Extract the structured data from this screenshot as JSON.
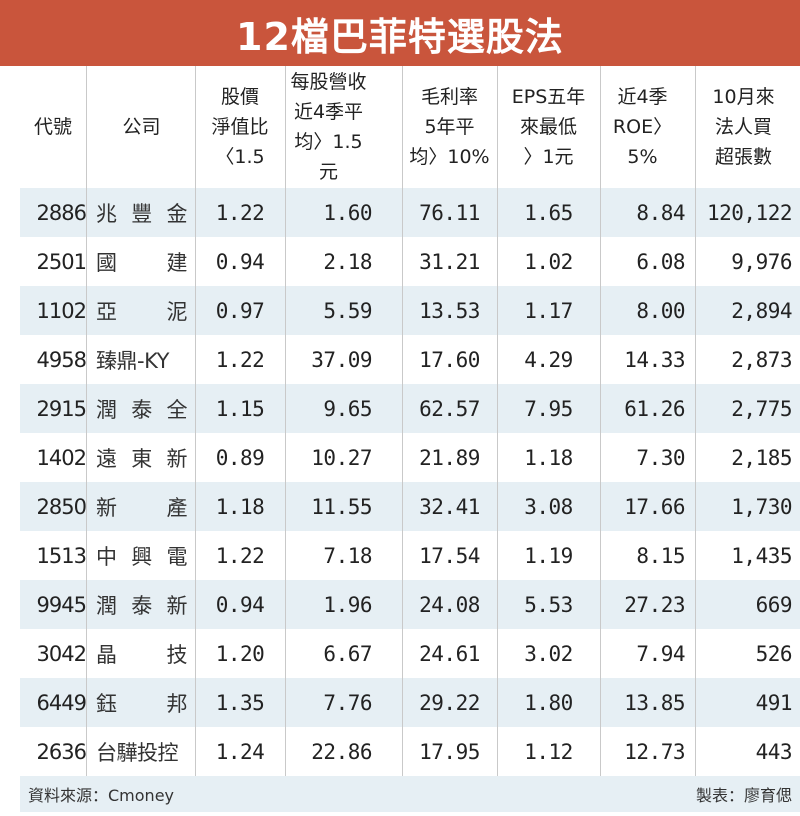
{
  "title": "12檔巴菲特選股法",
  "columns": [
    {
      "key": "code",
      "label": "代號"
    },
    {
      "key": "name",
      "label": "公司"
    },
    {
      "key": "pb",
      "label": "股價\n淨值比\n〈1.5"
    },
    {
      "key": "rev",
      "label": "每股營收\n近4季平\n均〉1.5元"
    },
    {
      "key": "gm",
      "label": "毛利率\n5年平\n均〉10%"
    },
    {
      "key": "eps",
      "label": "EPS五年\n來最低\n〉1元"
    },
    {
      "key": "roe",
      "label": "近4季\nROE〉5%"
    },
    {
      "key": "buy",
      "label": "10月來\n法人買\n超張數"
    }
  ],
  "rows": [
    {
      "code": "2886",
      "name": [
        "兆",
        "豐",
        "金"
      ],
      "pb": "1.22",
      "rev": "1.60",
      "gm": "76.11",
      "eps": "1.65",
      "roe": "8.84",
      "buy": "120,122"
    },
    {
      "code": "2501",
      "name": [
        "國",
        "建"
      ],
      "pb": "0.94",
      "rev": "2.18",
      "gm": "31.21",
      "eps": "1.02",
      "roe": "6.08",
      "buy": "9,976"
    },
    {
      "code": "1102",
      "name": [
        "亞",
        "泥"
      ],
      "pb": "0.97",
      "rev": "5.59",
      "gm": "13.53",
      "eps": "1.17",
      "roe": "8.00",
      "buy": "2,894"
    },
    {
      "code": "4958",
      "name": [
        "臻鼎-KY"
      ],
      "pb": "1.22",
      "rev": "37.09",
      "gm": "17.60",
      "eps": "4.29",
      "roe": "14.33",
      "buy": "2,873"
    },
    {
      "code": "2915",
      "name": [
        "潤",
        "泰",
        "全"
      ],
      "pb": "1.15",
      "rev": "9.65",
      "gm": "62.57",
      "eps": "7.95",
      "roe": "61.26",
      "buy": "2,775"
    },
    {
      "code": "1402",
      "name": [
        "遠",
        "東",
        "新"
      ],
      "pb": "0.89",
      "rev": "10.27",
      "gm": "21.89",
      "eps": "1.18",
      "roe": "7.30",
      "buy": "2,185"
    },
    {
      "code": "2850",
      "name": [
        "新",
        "產"
      ],
      "pb": "1.18",
      "rev": "11.55",
      "gm": "32.41",
      "eps": "3.08",
      "roe": "17.66",
      "buy": "1,730"
    },
    {
      "code": "1513",
      "name": [
        "中",
        "興",
        "電"
      ],
      "pb": "1.22",
      "rev": "7.18",
      "gm": "17.54",
      "eps": "1.19",
      "roe": "8.15",
      "buy": "1,435"
    },
    {
      "code": "9945",
      "name": [
        "潤",
        "泰",
        "新"
      ],
      "pb": "0.94",
      "rev": "1.96",
      "gm": "24.08",
      "eps": "5.53",
      "roe": "27.23",
      "buy": "669"
    },
    {
      "code": "3042",
      "name": [
        "晶",
        "技"
      ],
      "pb": "1.20",
      "rev": "6.67",
      "gm": "24.61",
      "eps": "3.02",
      "roe": "7.94",
      "buy": "526"
    },
    {
      "code": "6449",
      "name": [
        "鈺",
        "邦"
      ],
      "pb": "1.35",
      "rev": "7.76",
      "gm": "29.22",
      "eps": "1.80",
      "roe": "13.85",
      "buy": "491"
    },
    {
      "code": "2636",
      "name": [
        "台驊投控"
      ],
      "pb": "1.24",
      "rev": "22.86",
      "gm": "17.95",
      "eps": "1.12",
      "roe": "12.73",
      "buy": "443"
    }
  ],
  "footer": {
    "source": "資料來源：Cmoney",
    "credit": "製表：廖育偲"
  },
  "colors": {
    "title_bg": "#c9553c",
    "stripe": "#e6eff4",
    "divider": "#c9c9c9"
  }
}
